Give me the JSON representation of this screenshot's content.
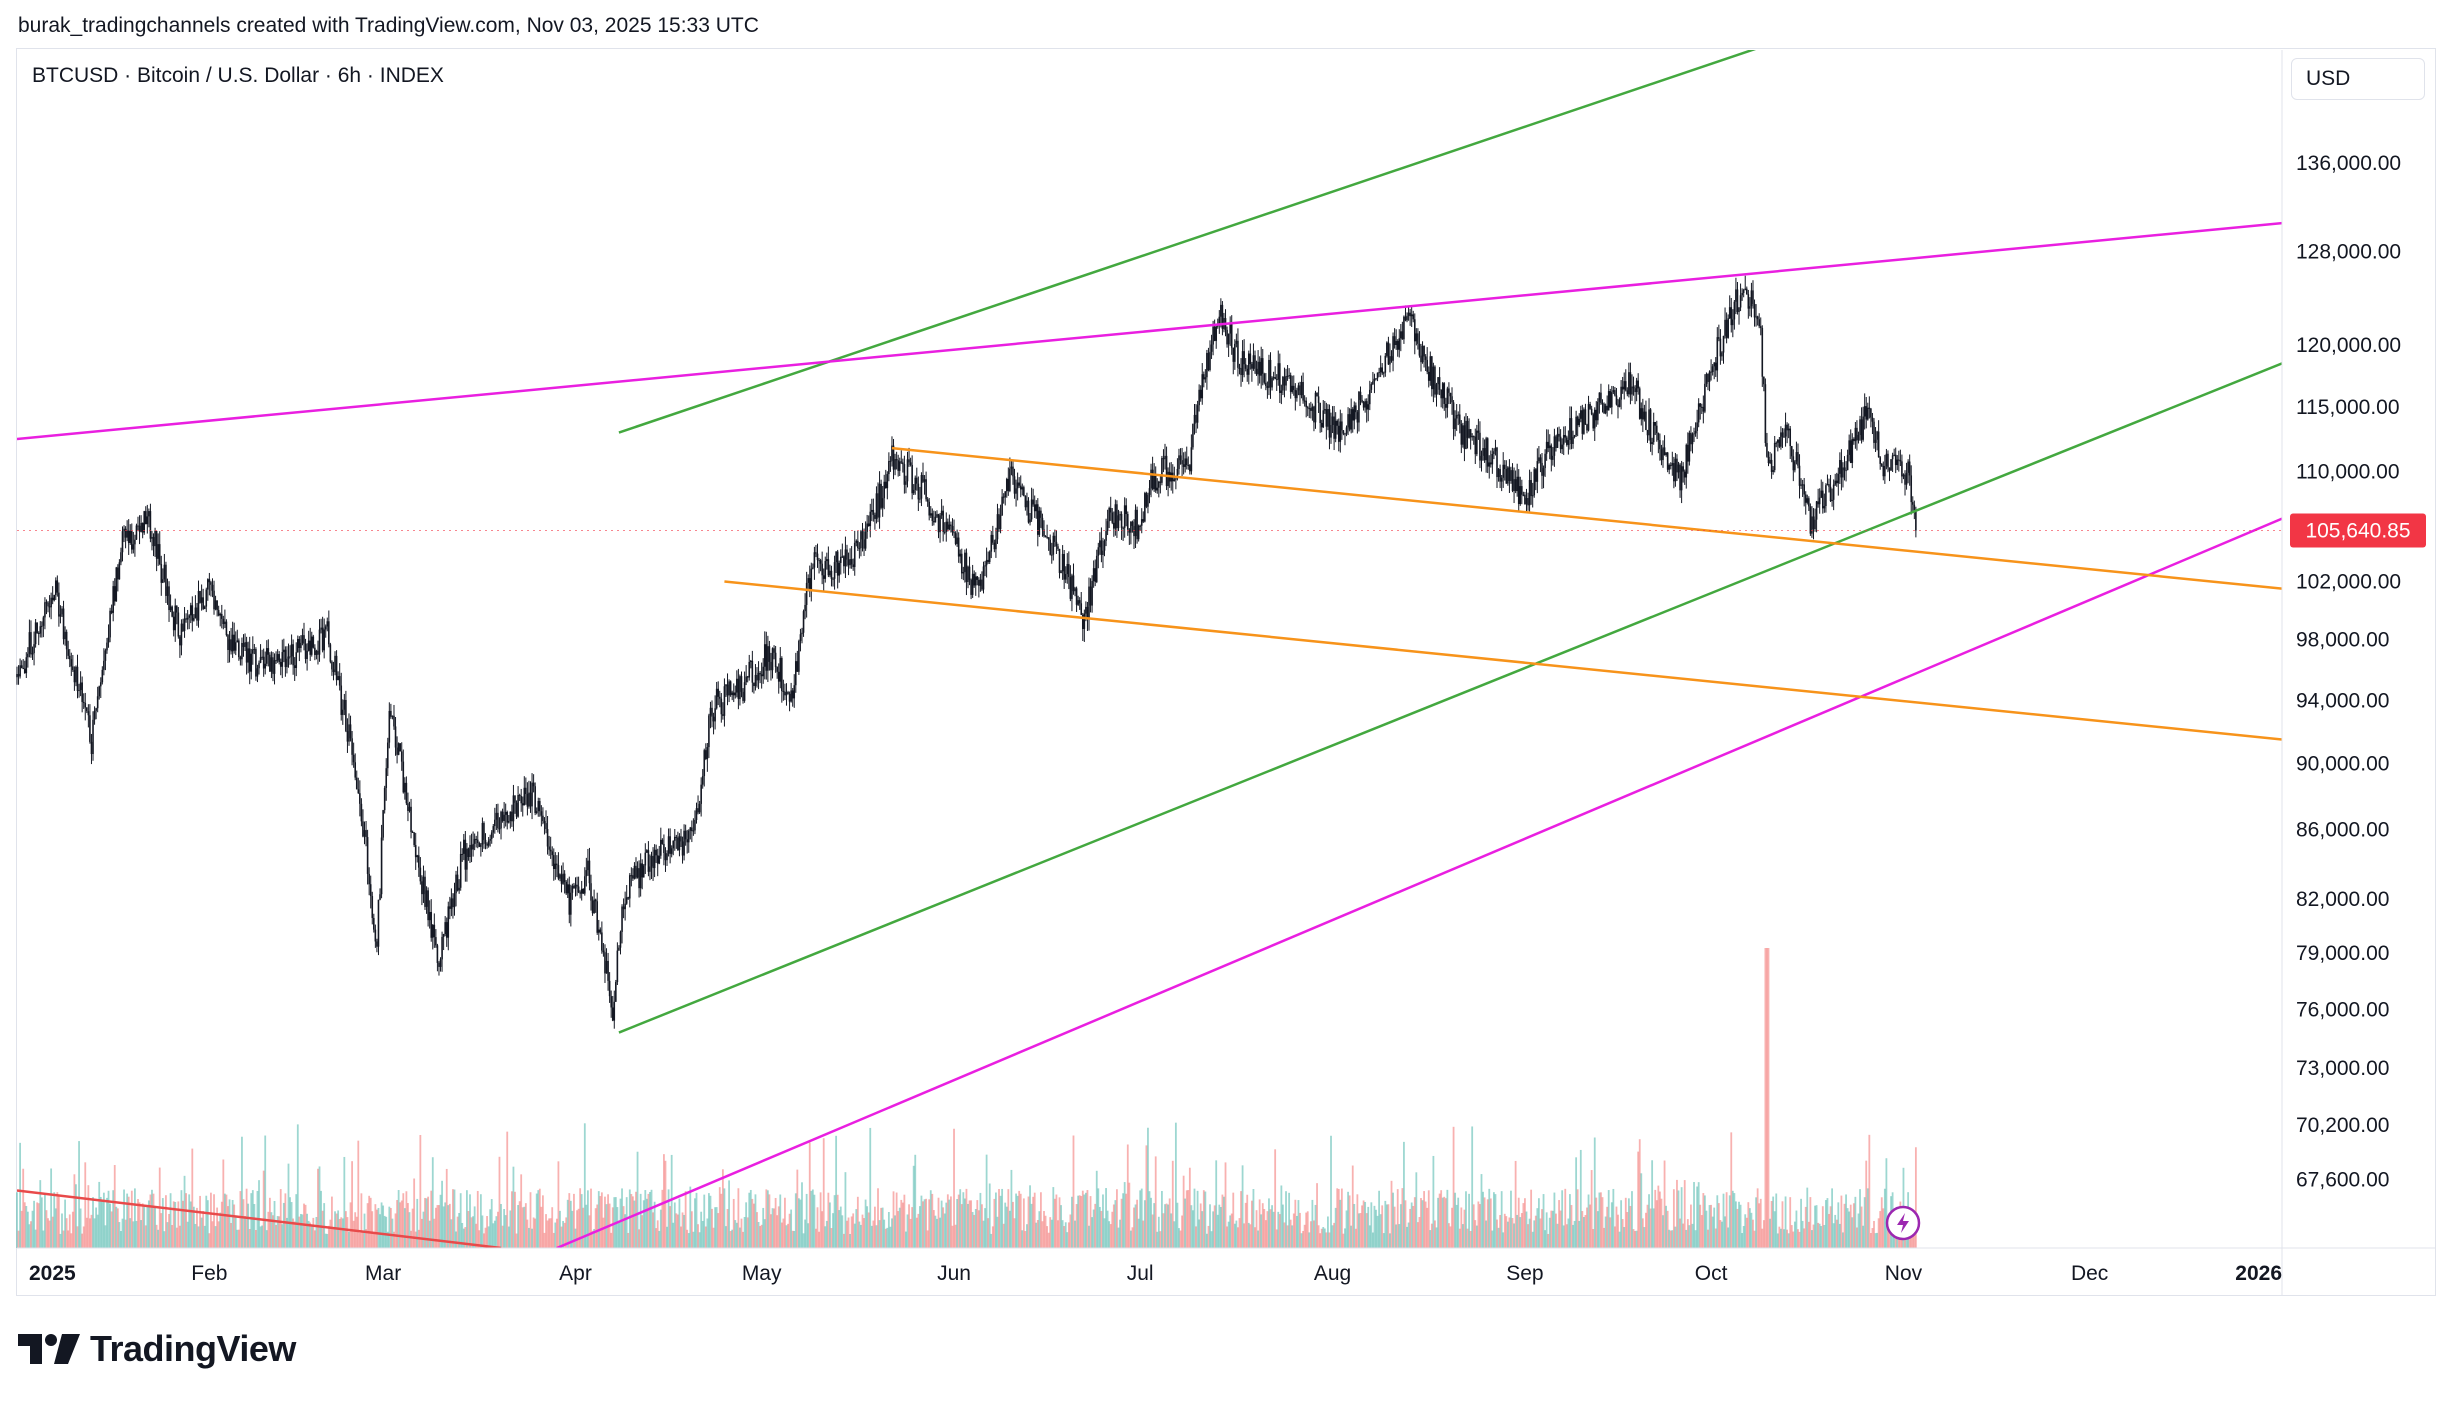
{
  "header": {
    "attribution": "burak_tradingchannels created with TradingView.com, Nov 03, 2025 15:33 UTC"
  },
  "chart_header": {
    "symbol_title": "BTCUSD · Bitcoin / U.S. Dollar · 6h · INDEX",
    "currency": "USD"
  },
  "footer": {
    "logo_text": "TradingView"
  },
  "colors": {
    "up": "#26a69a",
    "down": "#ef5350",
    "candle": "#131722",
    "green_line": "#43a83f",
    "magenta_line": "#e91fe0",
    "orange_line": "#f7931a",
    "red_line": "#e84a4a",
    "last_price_bg": "#f23645"
  },
  "chart_data": {
    "type": "candlestick",
    "x_range": [
      "2025-01-01",
      "2026-01-01"
    ],
    "y_scale": "log",
    "y_range": [
      64500,
      147000
    ],
    "x_ticks": [
      {
        "label": "2025",
        "date": "2025-01-01",
        "bold": true
      },
      {
        "label": "Feb",
        "date": "2025-02-01"
      },
      {
        "label": "Mar",
        "date": "2025-03-01"
      },
      {
        "label": "Apr",
        "date": "2025-04-01"
      },
      {
        "label": "May",
        "date": "2025-05-01"
      },
      {
        "label": "Jun",
        "date": "2025-06-01"
      },
      {
        "label": "Jul",
        "date": "2025-07-01"
      },
      {
        "label": "Aug",
        "date": "2025-08-01"
      },
      {
        "label": "Sep",
        "date": "2025-09-01"
      },
      {
        "label": "Oct",
        "date": "2025-10-01"
      },
      {
        "label": "Nov",
        "date": "2025-11-01"
      },
      {
        "label": "Dec",
        "date": "2025-12-01"
      },
      {
        "label": "2026",
        "date": "2026-01-01",
        "bold": true
      }
    ],
    "y_ticks": [
      {
        "value": 136000,
        "label": "136,000.00"
      },
      {
        "value": 128000,
        "label": "128,000.00"
      },
      {
        "value": 120000,
        "label": "120,000.00"
      },
      {
        "value": 115000,
        "label": "115,000.00"
      },
      {
        "value": 110000,
        "label": "110,000.00"
      },
      {
        "value": 102000,
        "label": "102,000.00"
      },
      {
        "value": 98000,
        "label": "98,000.00"
      },
      {
        "value": 94000,
        "label": "94,000.00"
      },
      {
        "value": 90000,
        "label": "90,000.00"
      },
      {
        "value": 86000,
        "label": "86,000.00"
      },
      {
        "value": 82000,
        "label": "82,000.00"
      },
      {
        "value": 79000,
        "label": "79,000.00"
      },
      {
        "value": 76000,
        "label": "76,000.00"
      },
      {
        "value": 73000,
        "label": "73,000.00"
      },
      {
        "value": 70200,
        "label": "70,200.00"
      },
      {
        "value": 67600,
        "label": "67,600.00"
      }
    ],
    "last_price": {
      "value": 105640.85,
      "label": "105,640.85"
    },
    "price_path": [
      [
        "2025-01-01",
        95500
      ],
      [
        "2025-01-07",
        101500
      ],
      [
        "2025-01-13",
        91500
      ],
      [
        "2025-01-18",
        104500
      ],
      [
        "2025-01-22",
        106500
      ],
      [
        "2025-01-27",
        98500
      ],
      [
        "2025-02-01",
        101500
      ],
      [
        "2025-02-05",
        97000
      ],
      [
        "2025-02-12",
        96200
      ],
      [
        "2025-02-20",
        98500
      ],
      [
        "2025-02-25",
        88500
      ],
      [
        "2025-02-28",
        79500
      ],
      [
        "2025-03-02",
        94000
      ],
      [
        "2025-03-05",
        87000
      ],
      [
        "2025-03-10",
        78500
      ],
      [
        "2025-03-14",
        84500
      ],
      [
        "2025-03-20",
        86500
      ],
      [
        "2025-03-25",
        88000
      ],
      [
        "2025-03-31",
        82000
      ],
      [
        "2025-04-03",
        83500
      ],
      [
        "2025-04-07",
        76000
      ],
      [
        "2025-04-09",
        82500
      ],
      [
        "2025-04-15",
        85000
      ],
      [
        "2025-04-20",
        85500
      ],
      [
        "2025-04-23",
        93500
      ],
      [
        "2025-04-28",
        95000
      ],
      [
        "2025-05-02",
        97000
      ],
      [
        "2025-05-06",
        94500
      ],
      [
        "2025-05-09",
        103000
      ],
      [
        "2025-05-15",
        103500
      ],
      [
        "2025-05-19",
        106500
      ],
      [
        "2025-05-22",
        111000
      ],
      [
        "2025-05-27",
        108500
      ],
      [
        "2025-06-01",
        104500
      ],
      [
        "2025-06-05",
        101000
      ],
      [
        "2025-06-10",
        109500
      ],
      [
        "2025-06-17",
        104500
      ],
      [
        "2025-06-22",
        99500
      ],
      [
        "2025-06-26",
        107000
      ],
      [
        "2025-07-01",
        106000
      ],
      [
        "2025-07-03",
        109500
      ],
      [
        "2025-07-09",
        111000
      ],
      [
        "2025-07-11",
        117500
      ],
      [
        "2025-07-14",
        122500
      ],
      [
        "2025-07-17",
        118500
      ],
      [
        "2025-07-25",
        117000
      ],
      [
        "2025-08-02",
        113000
      ],
      [
        "2025-08-08",
        117000
      ],
      [
        "2025-08-13",
        122500
      ],
      [
        "2025-08-17",
        117500
      ],
      [
        "2025-08-22",
        113000
      ],
      [
        "2025-08-26",
        111500
      ],
      [
        "2025-09-01",
        108000
      ],
      [
        "2025-09-05",
        111500
      ],
      [
        "2025-09-12",
        114500
      ],
      [
        "2025-09-18",
        117000
      ],
      [
        "2025-09-22",
        112500
      ],
      [
        "2025-09-26",
        109500
      ],
      [
        "2025-10-01",
        118000
      ],
      [
        "2025-10-06",
        125000
      ],
      [
        "2025-10-09",
        121500
      ],
      [
        "2025-10-10",
        110000
      ],
      [
        "2025-10-13",
        113500
      ],
      [
        "2025-10-17",
        106500
      ],
      [
        "2025-10-21",
        109000
      ],
      [
        "2025-10-26",
        114500
      ],
      [
        "2025-10-29",
        110500
      ],
      [
        "2025-11-02",
        110000
      ],
      [
        "2025-11-03",
        105640.85
      ]
    ],
    "trend_lines": [
      {
        "name": "green-upper-channel",
        "color": "#43a83f",
        "from": [
          "2025-04-08",
          113000
        ],
        "to": [
          "2025-10-17",
          149000
        ]
      },
      {
        "name": "green-lower-channel",
        "color": "#43a83f",
        "from": [
          "2025-04-08",
          74800
        ],
        "to": [
          "2026-01-01",
          118500
        ]
      },
      {
        "name": "magenta-upper-line",
        "color": "#e91fe0",
        "from": [
          "2025-01-01",
          112500
        ],
        "to": [
          "2026-01-01",
          130500
        ]
      },
      {
        "name": "magenta-lower-line",
        "color": "#e91fe0",
        "from": [
          "2025-03-29",
          64500
        ],
        "to": [
          "2026-01-01",
          106500
        ]
      },
      {
        "name": "orange-upper-line",
        "color": "#f7931a",
        "from": [
          "2025-05-22",
          111800
        ],
        "to": [
          "2026-01-01",
          101500
        ]
      },
      {
        "name": "orange-lower-line",
        "color": "#f7931a",
        "from": [
          "2025-04-25",
          102000
        ],
        "to": [
          "2026-01-01",
          91500
        ]
      },
      {
        "name": "red-line",
        "color": "#e84a4a",
        "from": [
          "2025-01-01",
          67100
        ],
        "to": [
          "2025-03-20",
          64500
        ]
      }
    ]
  }
}
